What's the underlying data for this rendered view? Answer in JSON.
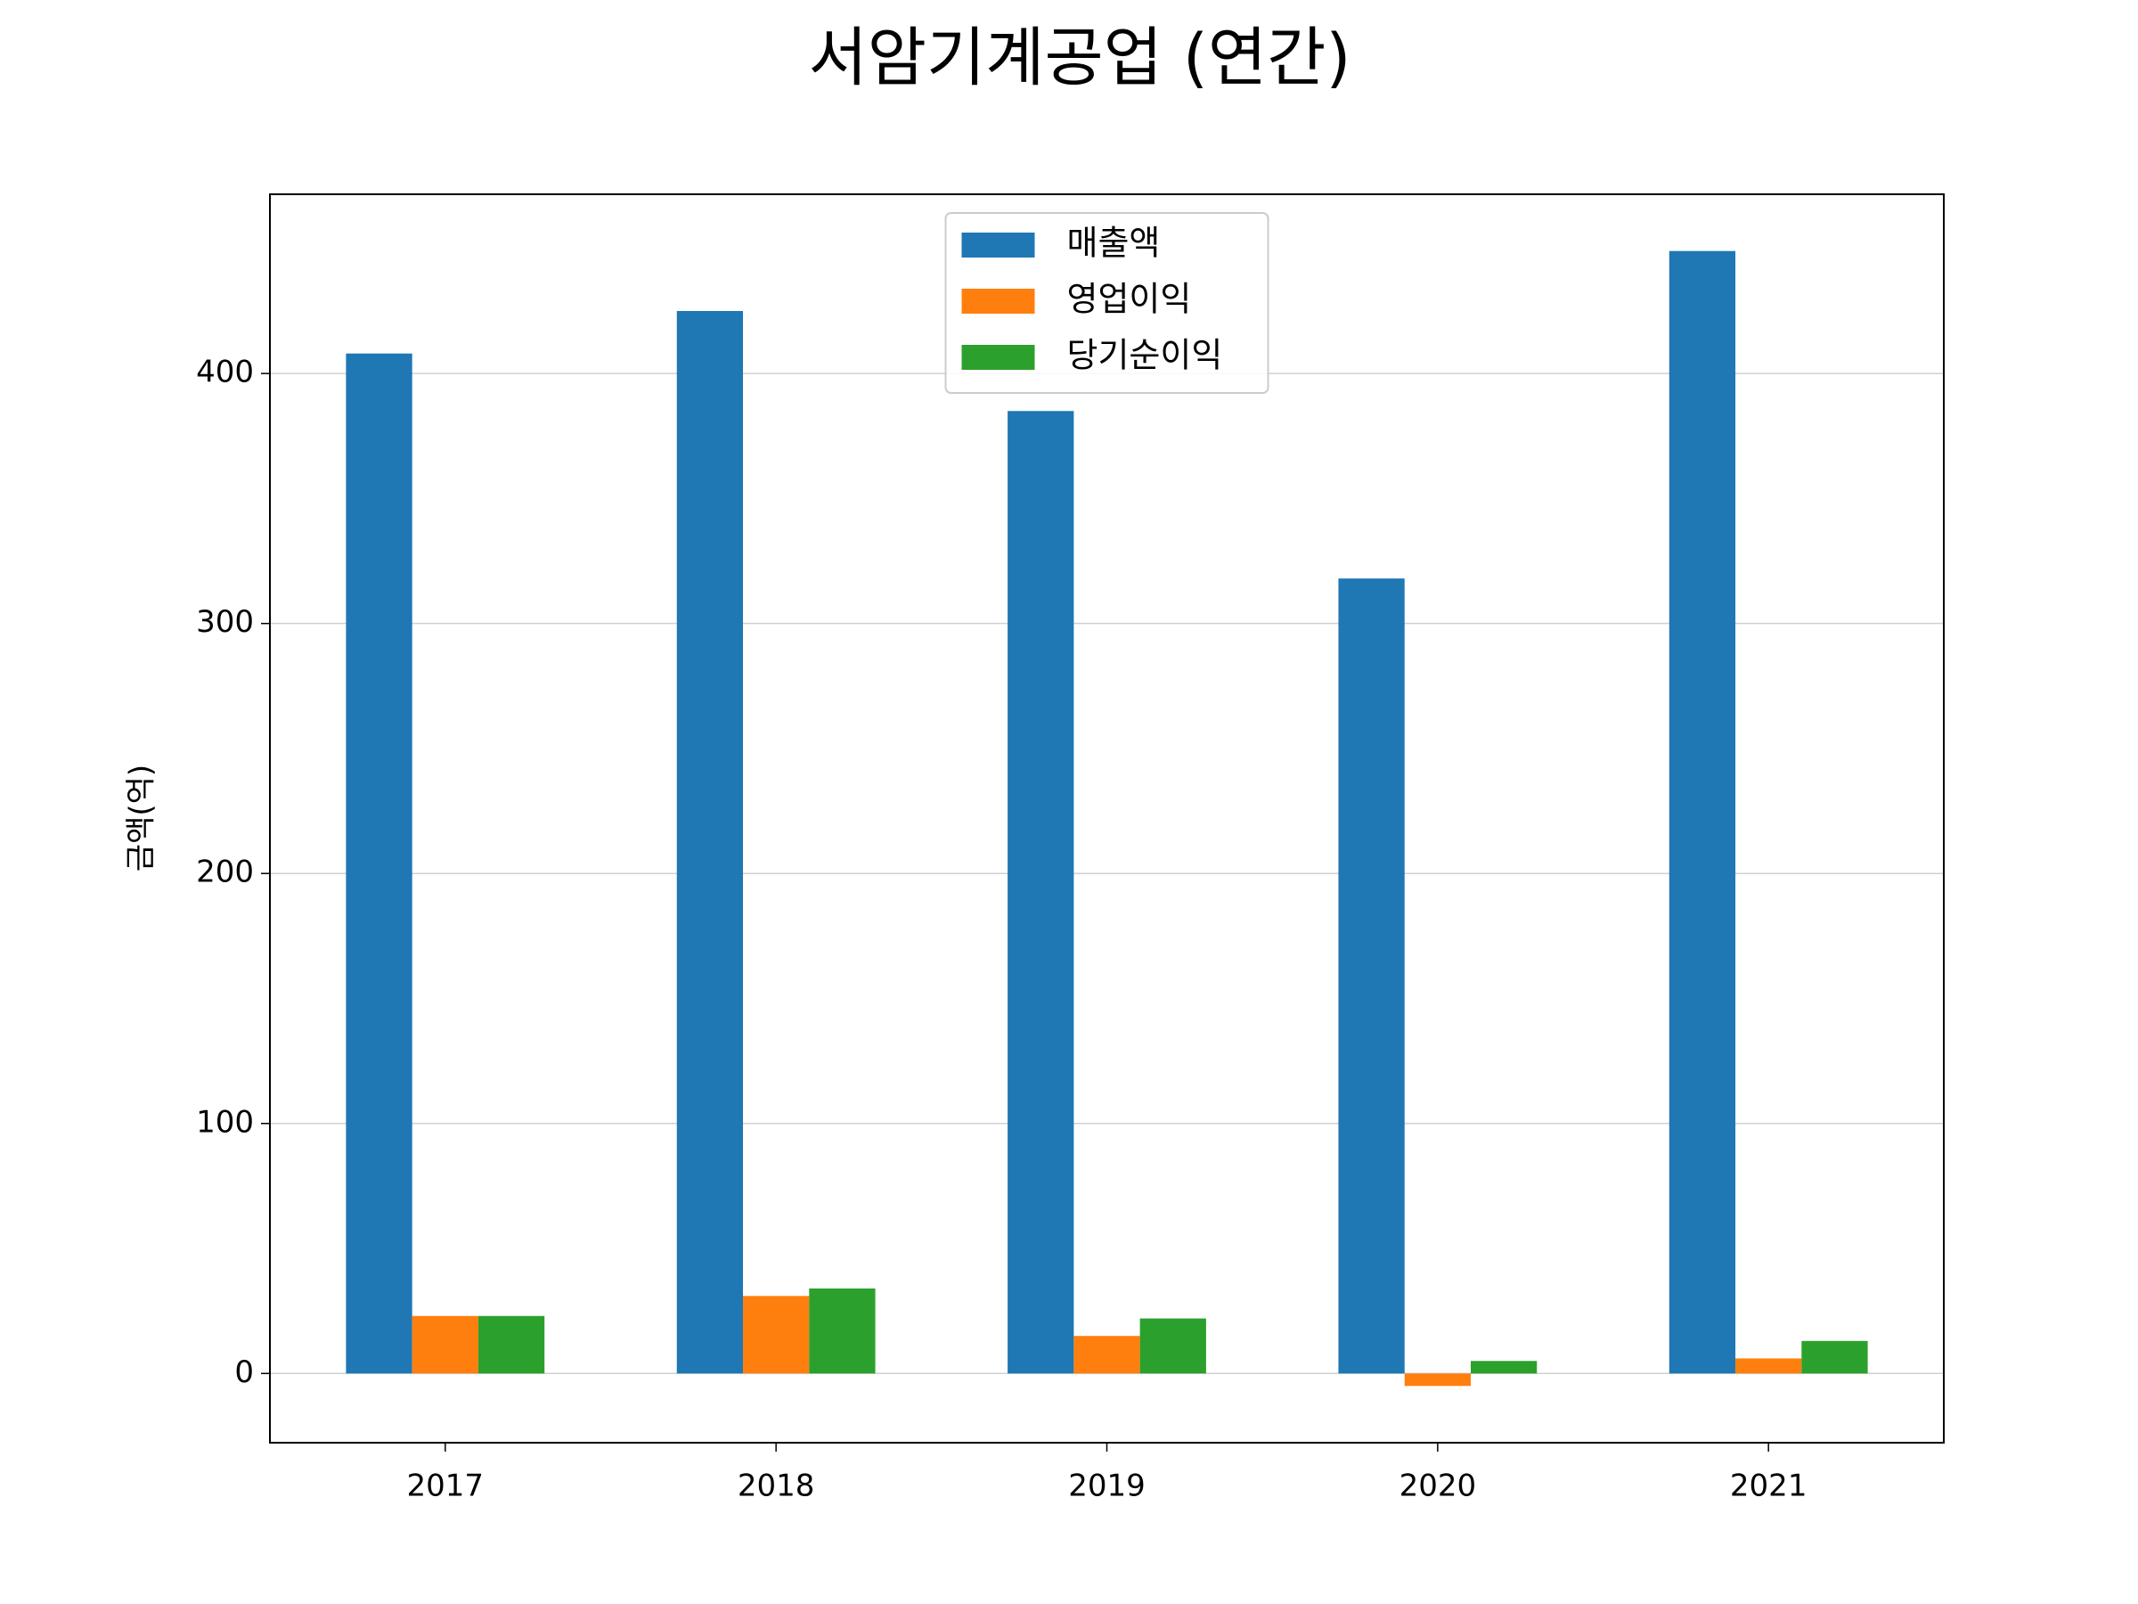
{
  "chart_data": {
    "type": "bar",
    "title": "서암기계공업 (연간)",
    "y_label": "금액(억)",
    "categories": [
      "2017",
      "2018",
      "2019",
      "2020",
      "2021"
    ],
    "series": [
      {
        "name": "매출액",
        "color": "#1f77b4",
        "values": [
          408,
          425,
          385,
          318,
          449
        ]
      },
      {
        "name": "영업이익",
        "color": "#ff7f0e",
        "values": [
          23,
          31,
          15,
          -5,
          6
        ]
      },
      {
        "name": "당기순이익",
        "color": "#2ca02c",
        "values": [
          23,
          34,
          22,
          5,
          13
        ]
      }
    ],
    "ylim": [
      -27.7,
      471.7
    ],
    "yticks": [
      0,
      100,
      200,
      300,
      400
    ],
    "grid": true,
    "legend": "upper center"
  }
}
